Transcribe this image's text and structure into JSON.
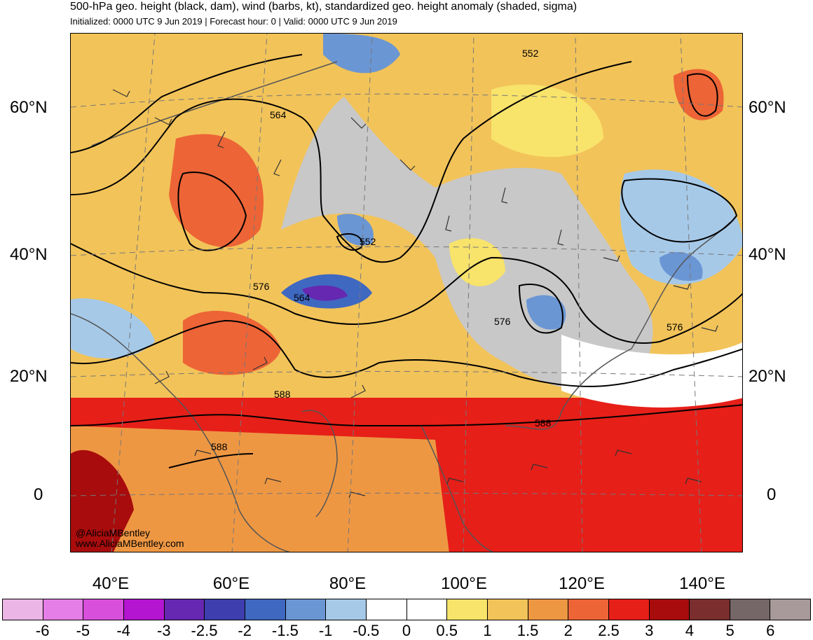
{
  "header": {
    "title": "500-hPa geo. height (black, dam), wind (barbs, kt), standardized geo. height anomaly (shaded, sigma)",
    "subtitle": "Initialized: 0000 UTC 9 Jun 2019 | Forecast hour: 0 | Valid: 0000 UTC 9 Jun 2019"
  },
  "map": {
    "region": "Asia / Indian Ocean",
    "lat_labels_left": [
      "60°N",
      "40°N",
      "20°N",
      "0"
    ],
    "lat_labels_right": [
      "60°N",
      "40°N",
      "20°N",
      "0"
    ],
    "lon_labels": [
      "40°E",
      "60°E",
      "80°E",
      "100°E",
      "120°E",
      "140°E"
    ],
    "contour_labels": [
      "552",
      "564",
      "552",
      "576",
      "564",
      "576",
      "576",
      "588",
      "588",
      "588"
    ],
    "watermark_line1": "@AliciaMBentley",
    "watermark_line2": "www.AliciaMBentley.com"
  },
  "colorbar": {
    "labels": [
      "-6",
      "-5",
      "-4",
      "-3",
      "-2.5",
      "-2",
      "-1.5",
      "-1",
      "-0.5",
      "0",
      "0.5",
      "1",
      "1.5",
      "2",
      "2.5",
      "3",
      "4",
      "5",
      "6"
    ],
    "colors": [
      "#ebb6e6",
      "#e57ee6",
      "#d84fdc",
      "#b315d0",
      "#6628b0",
      "#3e3eae",
      "#3f68c0",
      "#6b96d4",
      "#a6c9e8",
      "#ffffff",
      "#ffffff",
      "#f8e36b",
      "#f2c359",
      "#ee9743",
      "#ed6436",
      "#e61f19",
      "#a80c0c",
      "#7a2e2e",
      "#756767",
      "#a89a9a"
    ]
  }
}
